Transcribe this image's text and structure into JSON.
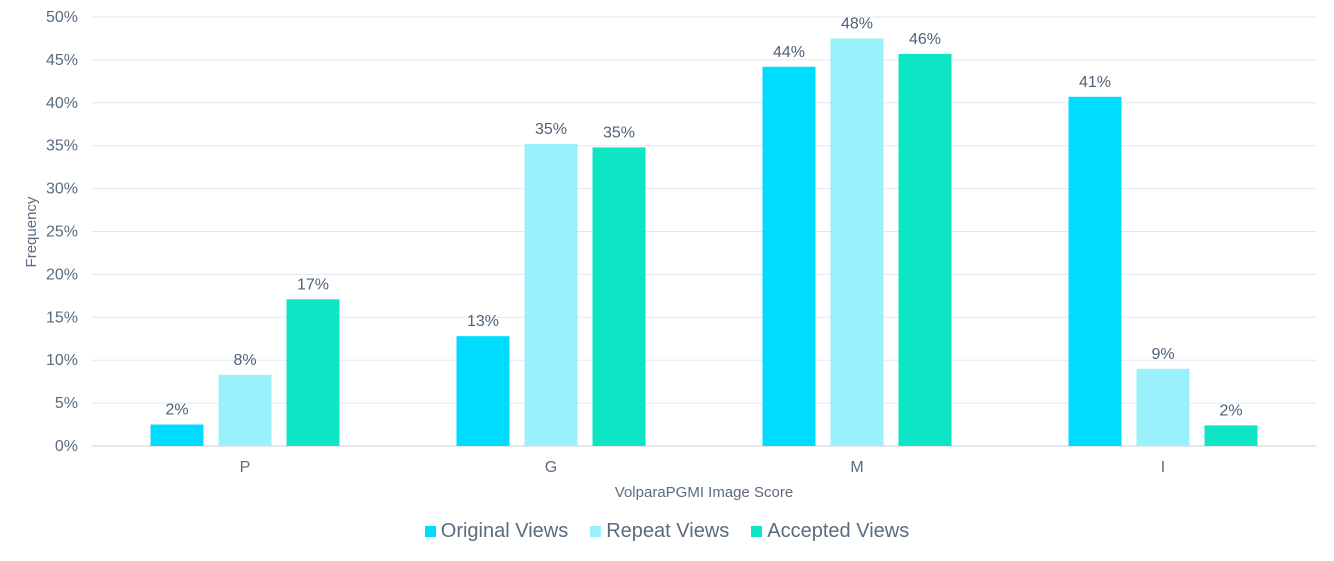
{
  "chart_data": {
    "type": "bar",
    "xlabel": "VolparaPGMI Image Score",
    "ylabel": "Frequency",
    "categories": [
      "P",
      "G",
      "M",
      "I"
    ],
    "ylim": [
      0,
      50
    ],
    "yticks": [
      "0%",
      "5%",
      "10%",
      "15%",
      "20%",
      "25%",
      "30%",
      "35%",
      "40%",
      "45%",
      "50%"
    ],
    "grid": true,
    "legend_position": "bottom",
    "series": [
      {
        "name": "Original Views",
        "color": "#00dcff",
        "values": [
          2.5,
          12.8,
          44.2,
          40.7
        ],
        "labels": [
          "2%",
          "13%",
          "44%",
          "41%"
        ]
      },
      {
        "name": "Repeat Views",
        "color": "#9af0fb",
        "values": [
          8.3,
          35.2,
          47.5,
          9.0
        ],
        "labels": [
          "8%",
          "35%",
          "48%",
          "9%"
        ]
      },
      {
        "name": "Accepted Views",
        "color": "#0ce6c4",
        "values": [
          17.1,
          34.8,
          45.7,
          2.4
        ],
        "labels": [
          "17%",
          "35%",
          "46%",
          "2%"
        ]
      }
    ]
  }
}
